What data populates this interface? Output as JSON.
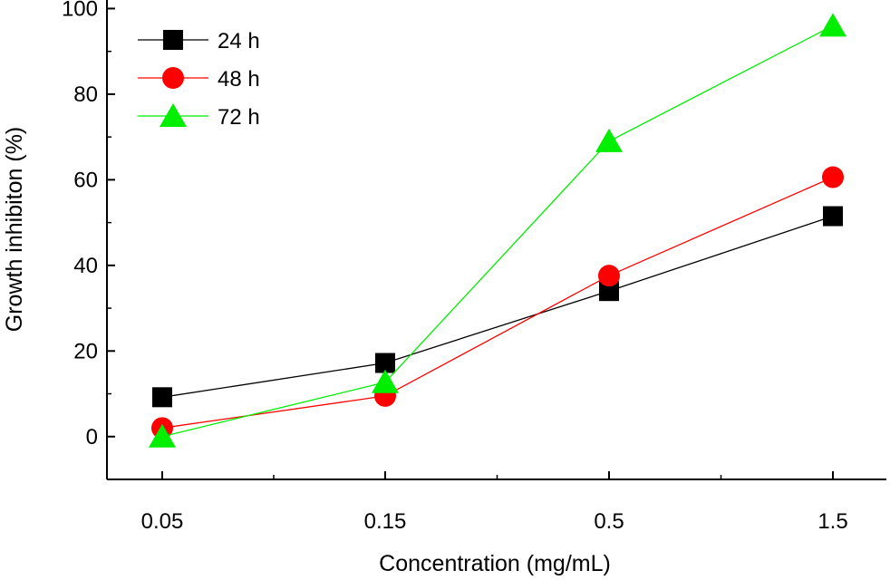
{
  "chart_data": {
    "type": "line",
    "title": "",
    "xlabel": "Concentration (mg/mL)",
    "ylabel": "Growth inhibiton (%)",
    "categories": [
      "0.05",
      "0.15",
      "0.5",
      "1.5"
    ],
    "ylim": [
      -10,
      102
    ],
    "yticks": [
      0,
      20,
      40,
      60,
      80,
      100
    ],
    "grid": false,
    "legend_position": "top-left",
    "series": [
      {
        "name": "24 h",
        "color": "#000000",
        "marker": "square",
        "values": [
          9.2,
          17.2,
          34.0,
          51.5
        ]
      },
      {
        "name": "48 h",
        "color": "#ff0000",
        "marker": "circle",
        "values": [
          2.0,
          9.5,
          37.6,
          60.6
        ]
      },
      {
        "name": "72 h",
        "color": "#00ee00",
        "marker": "triangle",
        "values": [
          0.0,
          12.7,
          69.0,
          96.0
        ]
      }
    ]
  }
}
